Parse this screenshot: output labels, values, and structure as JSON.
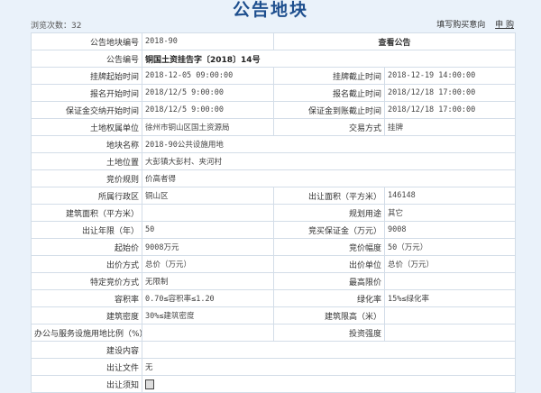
{
  "title": "公告地块",
  "views": "浏览次数：32",
  "top_links": {
    "intent": "填写购买意向",
    "apply": "申 购"
  },
  "view_notice": "查看公告",
  "rows": [
    {
      "l1": "公告地块编号",
      "v1": "2018-90"
    },
    {
      "l1": "公告编号",
      "v1": "铜国土资挂告字〔2018〕14号"
    },
    {
      "l1": "挂牌起始时间",
      "v1": "2018-12-05 09:00:00",
      "l2": "挂牌截止时间",
      "v2": "2018-12-19 14:00:00"
    },
    {
      "l1": "报名开始时间",
      "v1": "2018/12/5 9:00:00",
      "l2": "报名截止时间",
      "v2": "2018/12/18 17:00:00"
    },
    {
      "l1": "保证金交纳开始时间",
      "v1": "2018/12/5 9:00:00",
      "l2": "保证金到账截止时间",
      "v2": "2018/12/18 17:00:00"
    },
    {
      "l1": "土地权属单位",
      "v1": "徐州市铜山区国土资源局",
      "l2": "交易方式",
      "v2": "挂牌"
    },
    {
      "l1": "地块名称",
      "v1": "2018-90公共设施用地"
    },
    {
      "l1": "土地位置",
      "v1": "大彭镇大彭村、夹河村"
    },
    {
      "l1": "竞价规则",
      "v1": "价高者得"
    },
    {
      "l1": "所属行政区",
      "v1": "铜山区",
      "l2": "出让面积（平方米）",
      "v2": "146148"
    },
    {
      "l1": "建筑面积（平方米）",
      "v1": "",
      "l2": "规划用途",
      "v2": "其它"
    },
    {
      "l1": "出让年限（年）",
      "v1": "50",
      "l2": "竞买保证金（万元）",
      "v2": "9008"
    },
    {
      "l1": "起始价",
      "v1": "9008万元",
      "l2": "竞价幅度",
      "v2": "50（万元）"
    },
    {
      "l1": "出价方式",
      "v1": "总价（万元）",
      "l2": "出价单位",
      "v2": "总价（万元）"
    },
    {
      "l1": "特定竞价方式",
      "v1": "无限制",
      "l2": "最高限价",
      "v2": ""
    },
    {
      "l1": "容积率",
      "v1": "0.70≤容积率≤1.20",
      "l2": "绿化率",
      "v2": "15%≤绿化率"
    },
    {
      "l1": "建筑密度",
      "v1": "30%≤建筑密度",
      "l2": "建筑限高（米）",
      "v2": ""
    },
    {
      "l1": "办公与服务设施用地比例（%）",
      "v1": "",
      "l2": "投资强度",
      "v2": ""
    },
    {
      "l1": "建设内容",
      "v1": ""
    },
    {
      "l1": "出让文件",
      "v1": "无"
    },
    {
      "l1": "出让须知",
      "v1": ""
    }
  ]
}
